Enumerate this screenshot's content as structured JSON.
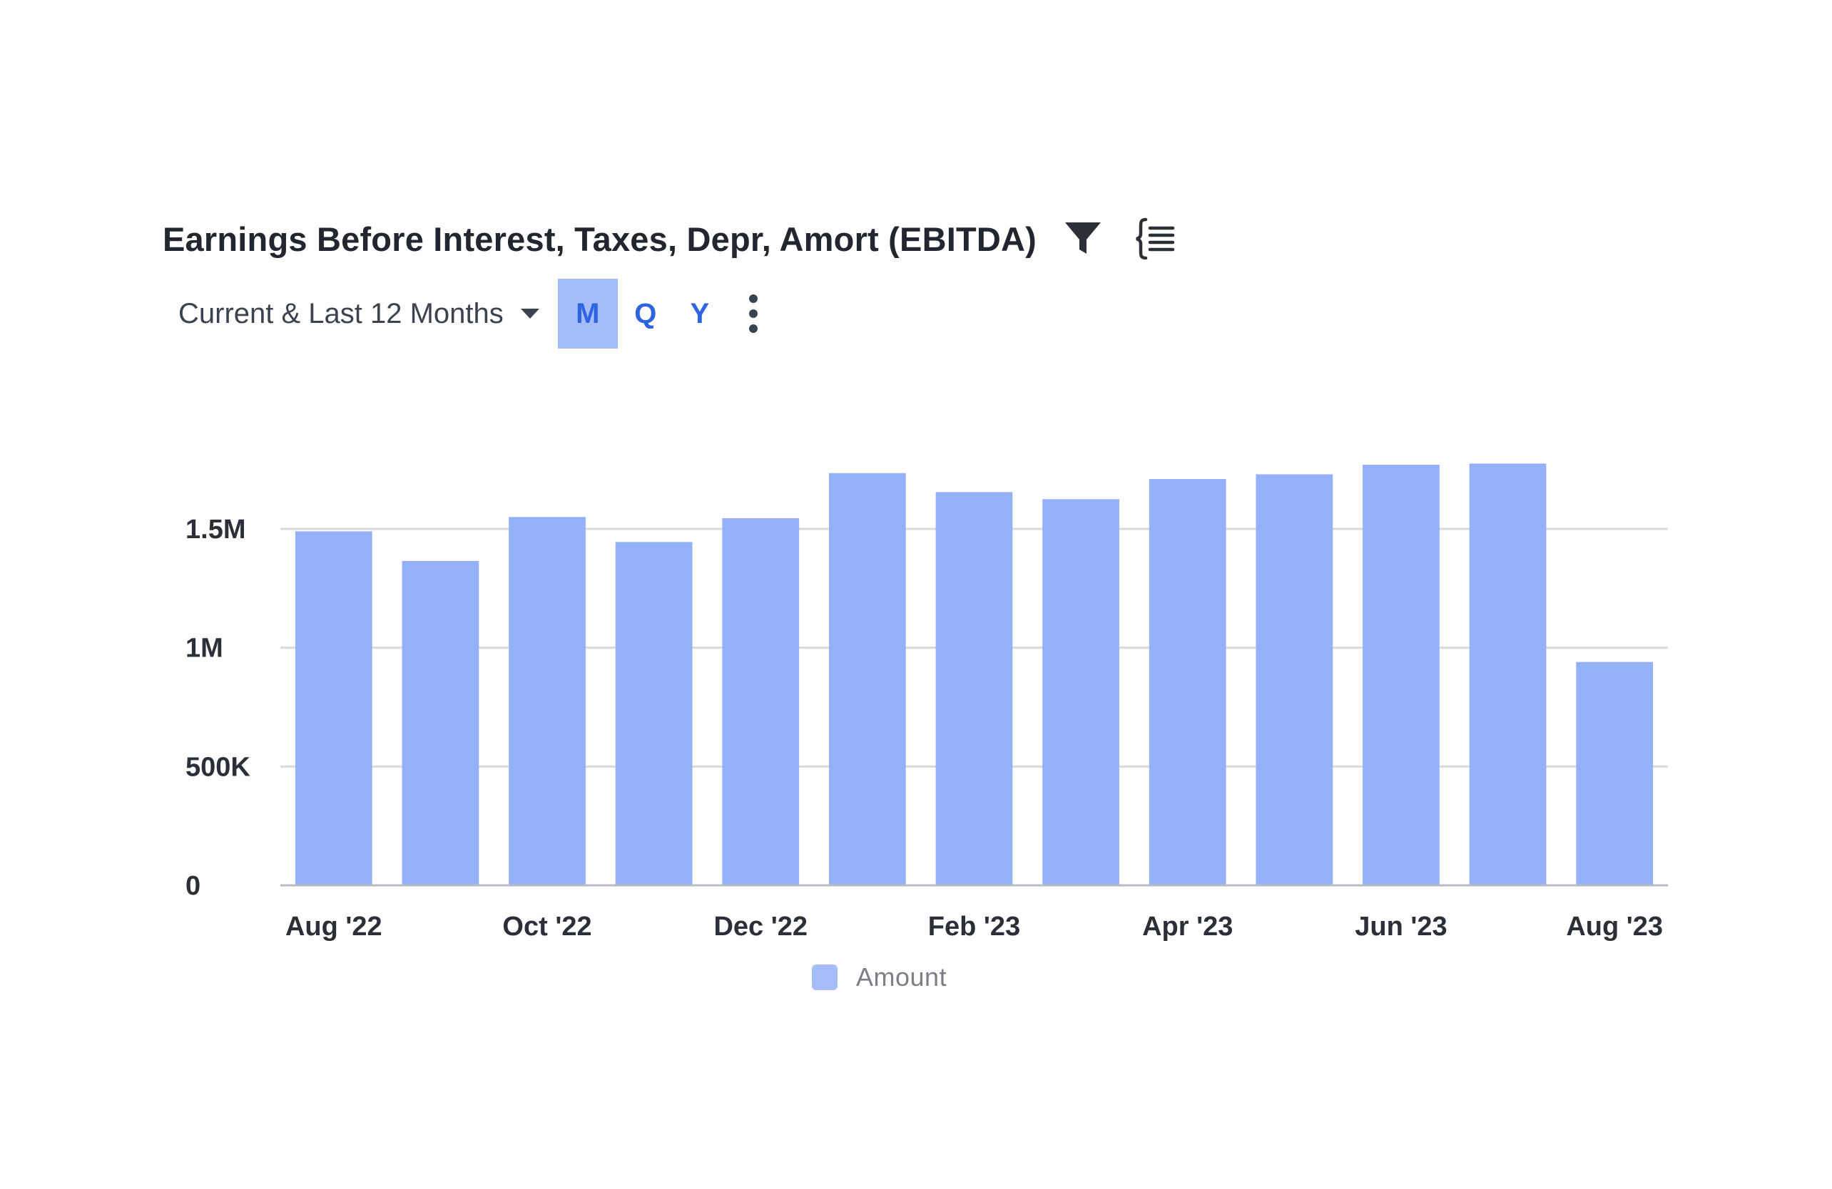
{
  "header": {
    "title": "Earnings Before Interest, Taxes, Depr, Amort (EBITDA)",
    "filter_icon": "filter-icon",
    "fields_icon": "list-bracket-icon"
  },
  "controls": {
    "range_label": "Current & Last 12 Months",
    "periods": [
      "M",
      "Q",
      "Y"
    ],
    "active_period": "M",
    "more_icon": "vertical-ellipsis-icon"
  },
  "colors": {
    "bar": "#94b0f7",
    "active_period_bg": "#a4bdf7",
    "period_text": "#2e64e0",
    "grid": "#d9d9d9"
  },
  "chart_data": {
    "type": "bar",
    "categories": [
      "Aug '22",
      "Sep '22",
      "Oct '22",
      "Nov '22",
      "Dec '22",
      "Jan '23",
      "Feb '23",
      "Mar '23",
      "Apr '23",
      "May '23",
      "Jun '23",
      "Jul '23",
      "Aug '23"
    ],
    "visible_tick_labels": [
      "Aug '22",
      "Oct '22",
      "Dec '22",
      "Feb '23",
      "Apr '23",
      "Jun '23",
      "Aug '23"
    ],
    "series": [
      {
        "name": "Amount",
        "values": [
          1490000,
          1365000,
          1550000,
          1445000,
          1545000,
          1735000,
          1655000,
          1625000,
          1710000,
          1730000,
          1770000,
          1775000,
          940000
        ]
      }
    ],
    "y_ticks": [
      {
        "value": 0,
        "label": "0"
      },
      {
        "value": 500000,
        "label": "500K"
      },
      {
        "value": 1000000,
        "label": "1M"
      },
      {
        "value": 1500000,
        "label": "1.5M"
      }
    ],
    "ylim": [
      0,
      1800000
    ],
    "grid": true,
    "legend_position": "bottom-center"
  }
}
